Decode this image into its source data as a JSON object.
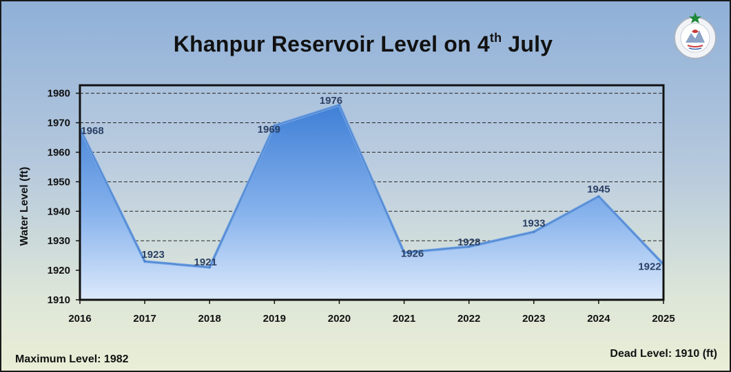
{
  "title": {
    "main": "Khanpur Reservoir Level on 4",
    "sup": "th",
    "tail": " July"
  },
  "footer": {
    "max_level": "Maximum Level: 1982",
    "dead_level": "Dead Level: 1910 (ft)"
  },
  "logo": {
    "text": "PAKISTAN METEOROLOGICAL DEPARTMENT",
    "icon": "pmd-logo-icon"
  },
  "colors": {
    "fill_top": "#3f7fd6",
    "fill_bottom": "#dce9fb",
    "line": "#6fa3e6",
    "label": "#2a3f64"
  },
  "chart_data": {
    "type": "area",
    "title": "Khanpur Reservoir Level on 4th July",
    "xlabel": "",
    "ylabel": "Water Level (ft)",
    "categories": [
      "2016",
      "2017",
      "2018",
      "2019",
      "2020",
      "2021",
      "2022",
      "2023",
      "2024",
      "2025"
    ],
    "values": [
      1968,
      1923,
      1921,
      1969,
      1976,
      1926,
      1928,
      1933,
      1945,
      1922
    ],
    "yticks": [
      1910,
      1920,
      1930,
      1940,
      1950,
      1960,
      1970,
      1980
    ],
    "ylim": [
      1910,
      1982
    ],
    "grid": true,
    "legend": "none"
  }
}
